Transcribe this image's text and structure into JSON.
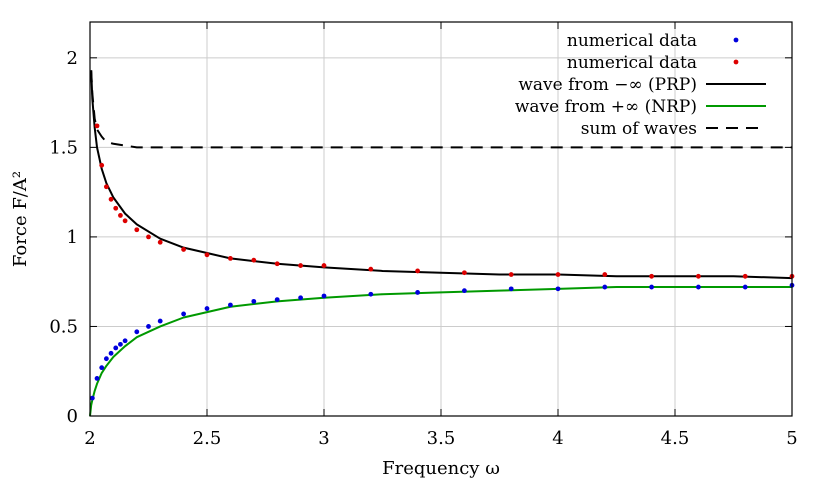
{
  "chart_data": {
    "type": "line",
    "xlabel": "Frequency ω",
    "ylabel": "Force F/A²",
    "xlim": [
      2,
      5
    ],
    "ylim": [
      0,
      2.2
    ],
    "x_ticks": [
      "2",
      "2.5",
      "3",
      "3.5",
      "4",
      "4.5",
      "5"
    ],
    "y_ticks": [
      "0",
      "0.5",
      "1",
      "1.5",
      "2"
    ],
    "grid": true,
    "legend_position": "top-right",
    "series": [
      {
        "name": "numerical data",
        "style": "points",
        "color": "#0000dd",
        "x": [
          2.01,
          2.03,
          2.05,
          2.07,
          2.09,
          2.11,
          2.13,
          2.15,
          2.2,
          2.25,
          2.3,
          2.4,
          2.5,
          2.6,
          2.7,
          2.8,
          2.9,
          3.0,
          3.2,
          3.4,
          3.6,
          3.8,
          4.0,
          4.2,
          4.4,
          4.6,
          4.8,
          5.0
        ],
        "y": [
          0.1,
          0.21,
          0.27,
          0.32,
          0.35,
          0.38,
          0.4,
          0.42,
          0.47,
          0.5,
          0.53,
          0.57,
          0.6,
          0.62,
          0.64,
          0.65,
          0.66,
          0.67,
          0.68,
          0.69,
          0.7,
          0.71,
          0.71,
          0.72,
          0.72,
          0.72,
          0.72,
          0.73
        ]
      },
      {
        "name": "numerical data",
        "style": "points",
        "color": "#dd0000",
        "x": [
          2.03,
          2.05,
          2.07,
          2.09,
          2.11,
          2.13,
          2.15,
          2.2,
          2.25,
          2.3,
          2.4,
          2.5,
          2.6,
          2.7,
          2.8,
          2.9,
          3.0,
          3.2,
          3.4,
          3.6,
          3.8,
          4.0,
          4.2,
          4.4,
          4.6,
          4.8,
          5.0
        ],
        "y": [
          1.62,
          1.4,
          1.28,
          1.21,
          1.16,
          1.12,
          1.09,
          1.04,
          1.0,
          0.97,
          0.93,
          0.9,
          0.88,
          0.87,
          0.85,
          0.84,
          0.84,
          0.82,
          0.81,
          0.8,
          0.79,
          0.79,
          0.79,
          0.78,
          0.78,
          0.78,
          0.78
        ]
      },
      {
        "name": "wave from −∞ (PRP)",
        "style": "solid",
        "color": "#000000",
        "x": [
          2.005,
          2.01,
          2.02,
          2.03,
          2.05,
          2.07,
          2.1,
          2.15,
          2.2,
          2.3,
          2.4,
          2.5,
          2.6,
          2.8,
          3.0,
          3.25,
          3.5,
          3.75,
          4.0,
          4.25,
          4.5,
          4.75,
          5.0
        ],
        "y": [
          1.93,
          1.77,
          1.61,
          1.5,
          1.38,
          1.3,
          1.22,
          1.13,
          1.07,
          0.99,
          0.94,
          0.91,
          0.88,
          0.85,
          0.83,
          0.81,
          0.8,
          0.79,
          0.79,
          0.78,
          0.78,
          0.78,
          0.77
        ]
      },
      {
        "name": "wave from +∞ (NRP)",
        "style": "solid",
        "color": "#009900",
        "x": [
          2.0,
          2.005,
          2.01,
          2.02,
          2.03,
          2.05,
          2.07,
          2.1,
          2.15,
          2.2,
          2.3,
          2.4,
          2.5,
          2.6,
          2.8,
          3.0,
          3.25,
          3.5,
          3.75,
          4.0,
          4.25,
          4.5,
          4.75,
          5.0
        ],
        "y": [
          0.0,
          0.06,
          0.09,
          0.14,
          0.18,
          0.24,
          0.28,
          0.33,
          0.39,
          0.44,
          0.5,
          0.55,
          0.58,
          0.61,
          0.64,
          0.66,
          0.68,
          0.69,
          0.7,
          0.71,
          0.72,
          0.72,
          0.72,
          0.72
        ]
      },
      {
        "name": "sum of waves",
        "style": "dashed",
        "color": "#000000",
        "x": [
          2.005,
          2.01,
          2.02,
          2.03,
          2.05,
          2.07,
          2.1,
          2.15,
          2.2,
          2.3,
          2.5,
          3.0,
          3.5,
          4.0,
          4.5,
          5.0
        ],
        "y": [
          1.93,
          1.8,
          1.66,
          1.6,
          1.56,
          1.53,
          1.52,
          1.51,
          1.5,
          1.5,
          1.5,
          1.5,
          1.5,
          1.5,
          1.5,
          1.5
        ]
      }
    ]
  }
}
